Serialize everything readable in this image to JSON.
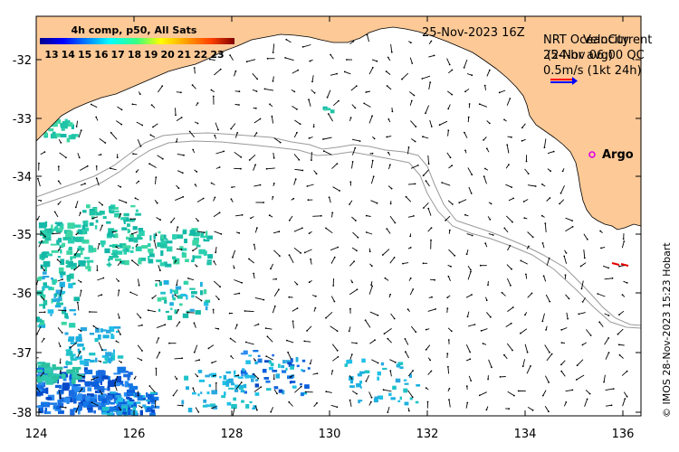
{
  "map": {
    "date_label": "25-Nov-2023 16Z",
    "colorbar": {
      "title": "4h comp, p50, All Sats",
      "ticks": [
        "13",
        "14",
        "15",
        "16",
        "17",
        "18",
        "19",
        "20",
        "21",
        "22",
        "23"
      ]
    },
    "legend": {
      "line1a": "NRT OceanCurrent",
      "line1b": "Velocity",
      "line2a": "25-Nov 06:00 QC",
      "line2b": "(24-hr avg)",
      "scale": "0.5m/s (1kt 24h)"
    },
    "argo_label": "Argo",
    "copyright": "© IMOS 28-Nov-2023 15:23 Hobart",
    "lat_ticks": [
      "-32",
      "-33",
      "-34",
      "-35",
      "-36",
      "-37",
      "-38"
    ],
    "lon_ticks": [
      "124",
      "126",
      "128",
      "130",
      "132",
      "134",
      "136"
    ],
    "colors": {
      "land": "#fcc997",
      "arrow": "#000000",
      "argo": "#e600e6",
      "scale_red": "#ff0000",
      "scale_blue": "#0000ff",
      "contour": "#9a9a9a"
    }
  }
}
